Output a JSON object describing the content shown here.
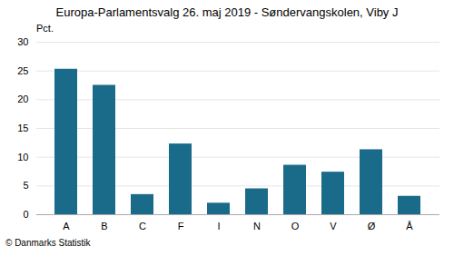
{
  "chart_data": {
    "type": "bar",
    "title": "Europa-Parlamentsvalg 26. maj 2019 - Søndervangskolen, Viby J",
    "ylabel": "Pct.",
    "annotations": [
      "© Danmarks Statistik"
    ],
    "categories": [
      "A",
      "B",
      "C",
      "F",
      "I",
      "N",
      "O",
      "V",
      "Ø",
      "Å"
    ],
    "values": [
      25.3,
      22.5,
      3.5,
      12.3,
      2.0,
      4.5,
      8.6,
      7.4,
      11.3,
      3.2
    ],
    "color": "#1a6b8a",
    "ylim": [
      0,
      30
    ],
    "yticks": [
      0,
      5,
      10,
      15,
      20,
      25,
      30
    ],
    "grid": true
  }
}
